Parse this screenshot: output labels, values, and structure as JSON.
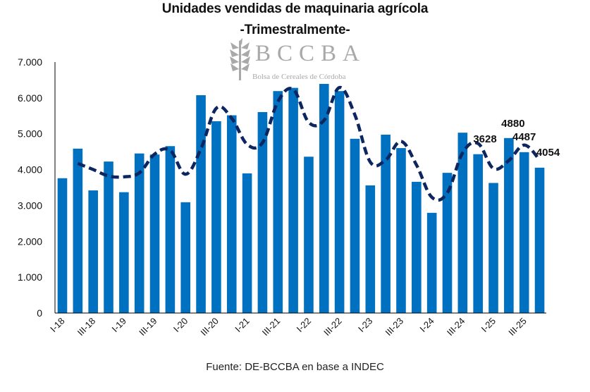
{
  "header": {
    "title": "Unidades vendidas de maquinaria agrícola",
    "subtitle": "-Trimestralmente-"
  },
  "logo": {
    "name": "BCCBA",
    "tagline": "Bolsa de Cereales de Córdoba"
  },
  "footer": {
    "source": "Fuente: DE-BCCBA en base a INDEC"
  },
  "colors": {
    "bar": "#0070C0",
    "line": "#0D2660",
    "axis": "#000000",
    "logo": "#A9A9A9"
  },
  "chart_data": {
    "type": "bar",
    "title": "Unidades vendidas de maquinaria agrícola",
    "subtitle": "-Trimestralmente-",
    "xlabel": "",
    "ylabel": "",
    "ylim": [
      0,
      7000
    ],
    "yticks": [
      0,
      1000,
      2000,
      3000,
      4000,
      5000,
      6000,
      7000
    ],
    "ytick_labels": [
      "0",
      "1.000",
      "2.000",
      "3.000",
      "4.000",
      "5.000",
      "6.000",
      "7.000"
    ],
    "grid": false,
    "legend": "none",
    "categories": [
      "I-18",
      "II-18",
      "III-18",
      "IV-18",
      "I-19",
      "II-19",
      "III-19",
      "IV-19",
      "I-20",
      "II-20",
      "III-20",
      "IV-20",
      "I-21",
      "II-21",
      "III-21",
      "IV-21",
      "I-22",
      "II-22",
      "III-22",
      "IV-22",
      "I-23",
      "II-23",
      "III-23",
      "IV-23",
      "I-24",
      "II-24",
      "III-24",
      "IV-24",
      "I-25",
      "II-25",
      "III-25",
      "IV-25"
    ],
    "visible_x_labels": [
      "I-18",
      "III-18",
      "I-19",
      "III-19",
      "I-20",
      "III-20",
      "I-21",
      "III-21",
      "I-22",
      "III-22",
      "I-23",
      "III-23",
      "I-24",
      "III-24",
      "I-25",
      "III-25"
    ],
    "series": [
      {
        "name": "Unidades vendidas",
        "type": "bar",
        "values": [
          3760,
          4585,
          3420,
          4225,
          3370,
          4450,
          4420,
          4655,
          3090,
          6075,
          5350,
          5515,
          3895,
          5605,
          6190,
          6280,
          4360,
          6390,
          6190,
          4860,
          3560,
          4975,
          4600,
          3660,
          2795,
          3910,
          5030,
          4430,
          3628,
          4880,
          4487,
          4054
        ]
      },
      {
        "name": "Media móvil (2 períodos)",
        "type": "line",
        "style": "dashed",
        "values": [
          null,
          4172,
          4002,
          3822,
          3798,
          3910,
          4435,
          4538,
          3872,
          4582,
          5712,
          5432,
          4705,
          4750,
          5898,
          6235,
          5320,
          5375,
          6290,
          5525,
          4210,
          4268,
          4788,
          4130,
          3228,
          3352,
          4470,
          4730,
          4029,
          4254,
          4684,
          4270
        ]
      }
    ],
    "data_labels": [
      {
        "category": "I-25",
        "text": "3628"
      },
      {
        "category": "II-25",
        "text": "4880"
      },
      {
        "category": "III-25",
        "text": "4487"
      },
      {
        "category": "IV-25",
        "text": "4054"
      }
    ]
  }
}
